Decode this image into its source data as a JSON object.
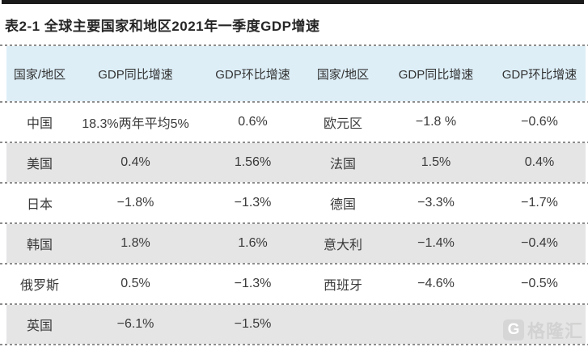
{
  "page": {
    "title": "表2-1 全球主要国家和地区2021年一季度GDP增速"
  },
  "chart_data": {
    "type": "table",
    "title": "表2-1 全球主要国家和地区2021年一季度GDP增速",
    "columns": [
      "国家/地区",
      "GDP同比增速",
      "GDP环比增速",
      "国家/地区",
      "GDP同比增速",
      "GDP环比增速"
    ],
    "rows": [
      [
        "中国",
        "18.3%两年平均5%",
        "0.6%",
        "欧元区",
        "−1.8 %",
        "−0.6%"
      ],
      [
        "美国",
        "0.4%",
        "1.56%",
        "法国",
        "1.5%",
        "0.4%"
      ],
      [
        "日本",
        "−1.8%",
        "−1.3%",
        "德国",
        "−3.3%",
        "−1.7%"
      ],
      [
        "韩国",
        "1.8%",
        "1.6%",
        "意大利",
        "−1.4%",
        "−0.4%"
      ],
      [
        "俄罗斯",
        "0.5%",
        "−1.3%",
        "西班牙",
        "−4.6%",
        "−0.5%"
      ],
      [
        "英国",
        "−6.1%",
        "−1.5%",
        "",
        "",
        ""
      ]
    ]
  },
  "watermark": {
    "logo_letter": "G",
    "text": "格隆汇"
  },
  "colors": {
    "top_bar": "#1b1b1b",
    "header_bg": "#ddeef7",
    "alt_row_bg": "#e5e5e6",
    "divider": "#8d8d8d",
    "text": "#3a3a3a",
    "title_text": "#262626",
    "watermark": "#d2d2d2"
  }
}
